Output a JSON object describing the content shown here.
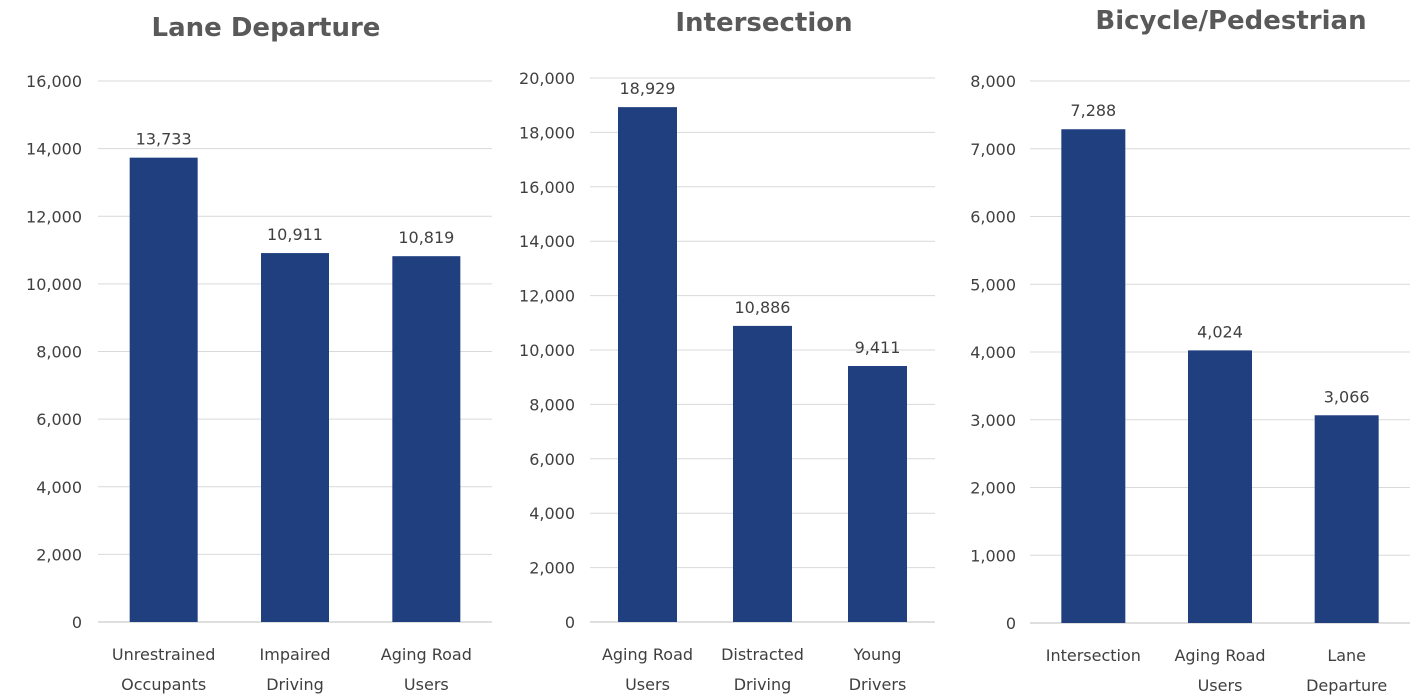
{
  "chart_data": [
    {
      "type": "bar",
      "title": "Lane Departure",
      "categories": [
        [
          "Unrestrained",
          "Occupants"
        ],
        [
          "Impaired",
          "Driving"
        ],
        [
          "Aging Road",
          "Users"
        ]
      ],
      "values": [
        13733,
        10911,
        10819
      ],
      "data_labels": [
        "13,733",
        "10,911",
        "10,819"
      ],
      "ylim": [
        0,
        16000
      ],
      "yticks": [
        "0",
        "2,000",
        "4,000",
        "6,000",
        "8,000",
        "10,000",
        "12,000",
        "14,000",
        "16,000"
      ],
      "grid": true,
      "bar_color": "#1f3f7f"
    },
    {
      "type": "bar",
      "title": "Intersection",
      "categories": [
        [
          "Aging Road",
          "Users"
        ],
        [
          "Distracted",
          "Driving"
        ],
        [
          "Young",
          "Drivers"
        ]
      ],
      "values": [
        18929,
        10886,
        9411
      ],
      "data_labels": [
        "18,929",
        "10,886",
        "9,411"
      ],
      "ylim": [
        0,
        20000
      ],
      "yticks": [
        "0",
        "2,000",
        "4,000",
        "6,000",
        "8,000",
        "10,000",
        "12,000",
        "14,000",
        "16,000",
        "18,000",
        "20,000"
      ],
      "grid": true,
      "bar_color": "#1f3f7f"
    },
    {
      "type": "bar",
      "title": "Bicycle/Pedestrian",
      "categories": [
        [
          "Intersection"
        ],
        [
          "Aging Road",
          "Users"
        ],
        [
          "Lane",
          "Departure"
        ]
      ],
      "values": [
        7288,
        4024,
        3066
      ],
      "data_labels": [
        "7,288",
        "4,024",
        "3,066"
      ],
      "ylim": [
        0,
        8000
      ],
      "yticks": [
        "0",
        "1,000",
        "2,000",
        "3,000",
        "4,000",
        "5,000",
        "6,000",
        "7,000",
        "8,000"
      ],
      "grid": true,
      "bar_color": "#1f3f7f"
    }
  ]
}
